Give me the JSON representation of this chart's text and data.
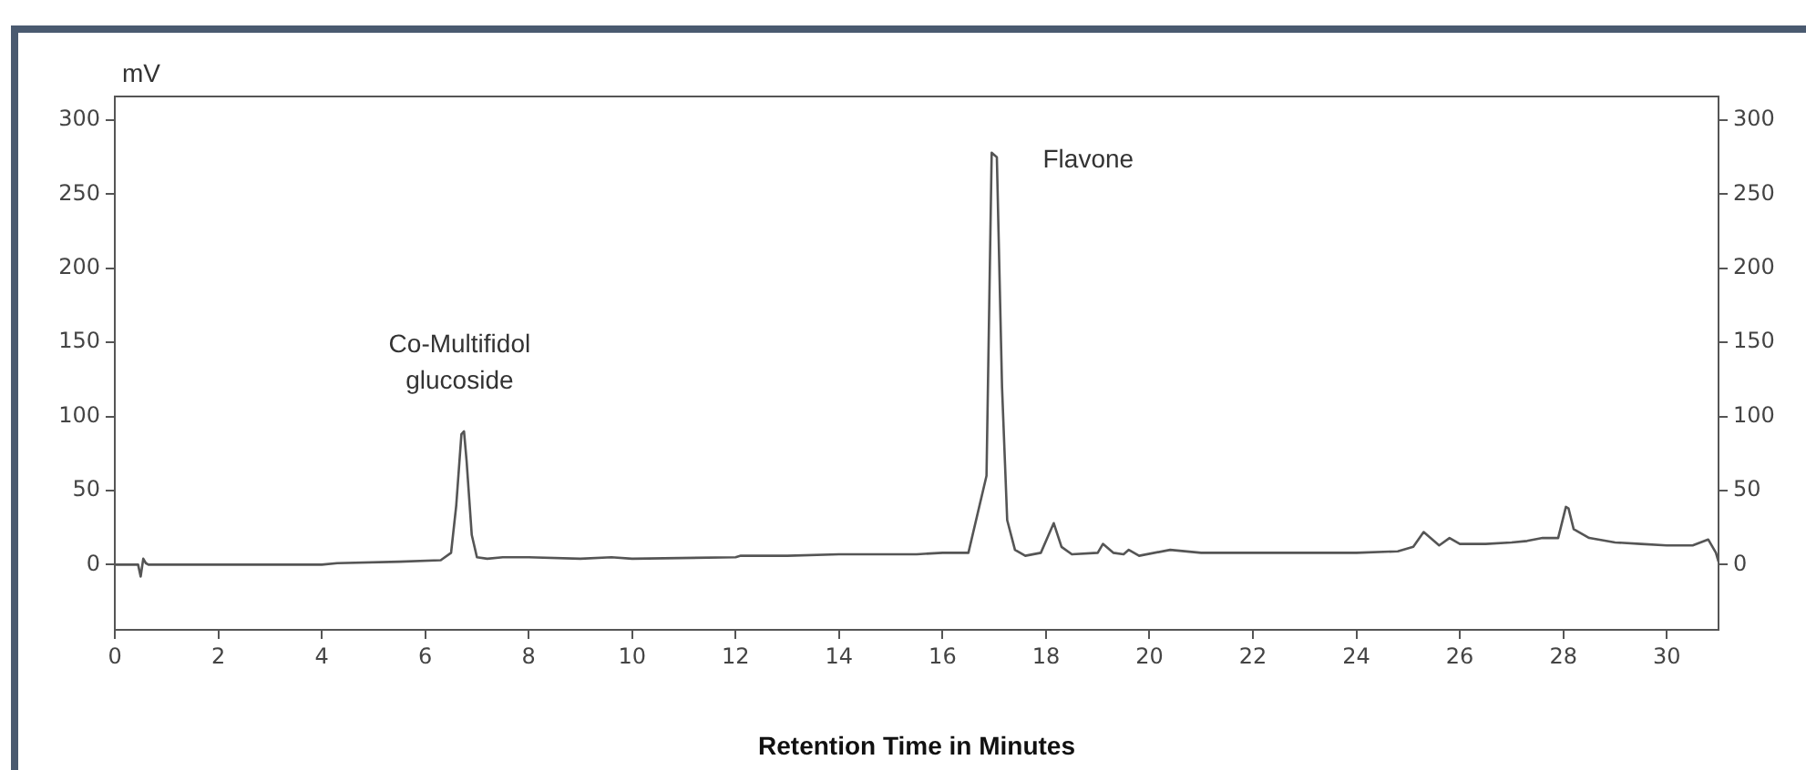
{
  "chart_data": {
    "type": "line",
    "xlabel": "Retention Time in Minutes",
    "ylabel": "mV",
    "xlim": [
      0,
      31
    ],
    "xticks": [
      0,
      2,
      4,
      6,
      8,
      10,
      12,
      14,
      16,
      18,
      20,
      22,
      24,
      26,
      28,
      30
    ],
    "ylim": [
      -44,
      316
    ],
    "yticks": [
      0,
      50,
      100,
      150,
      200,
      250,
      300
    ],
    "y2lim": [
      -44,
      316
    ],
    "y2ticks": [
      0,
      50,
      100,
      150,
      200,
      250,
      300
    ],
    "grid": false,
    "legend": false,
    "marker": "none",
    "line_style": "solid",
    "series": [
      {
        "color": "#555555",
        "x": [
          0,
          0.45,
          0.5,
          0.55,
          0.6,
          0.65,
          0.8,
          2,
          4,
          4.3,
          5.5,
          6.3,
          6.5,
          6.6,
          6.7,
          6.75,
          6.8,
          6.9,
          7,
          7.2,
          7.5,
          8,
          9,
          9.6,
          10,
          12,
          12.1,
          13,
          14,
          15.5,
          16,
          16.5,
          16.85,
          16.95,
          17.05,
          17.15,
          17.25,
          17.4,
          17.6,
          17.9,
          18.05,
          18.15,
          18.3,
          18.5,
          19,
          19.1,
          19.3,
          19.5,
          19.6,
          19.8,
          20.4,
          21,
          22,
          23,
          24,
          24.8,
          25.1,
          25.3,
          25.6,
          25.8,
          26,
          26.5,
          27,
          27.3,
          27.6,
          27.9,
          28.05,
          28.1,
          28.2,
          28.5,
          29,
          29.5,
          30,
          30.5,
          30.8,
          30.95,
          31
        ],
        "values": [
          0,
          0,
          -8,
          4,
          1,
          0,
          0,
          0,
          0,
          1,
          2,
          3,
          8,
          40,
          88,
          90,
          70,
          20,
          5,
          4,
          5,
          5,
          4,
          5,
          4,
          5,
          6,
          6,
          7,
          7,
          8,
          8,
          60,
          278,
          275,
          120,
          30,
          10,
          6,
          8,
          20,
          28,
          12,
          7,
          8,
          14,
          8,
          7,
          10,
          6,
          10,
          8,
          8,
          8,
          8,
          9,
          12,
          22,
          13,
          18,
          14,
          14,
          15,
          16,
          18,
          18,
          39,
          38,
          24,
          18,
          15,
          14,
          13,
          13,
          17,
          8,
          2
        ]
      }
    ],
    "annotations": [
      "Co-Multifidol glucoside",
      "Flavone"
    ]
  }
}
